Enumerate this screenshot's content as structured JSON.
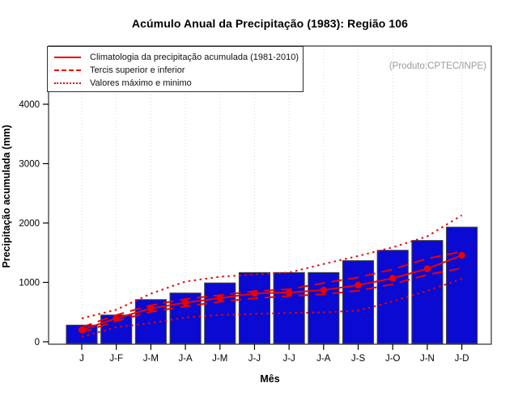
{
  "header": {
    "title": "Acúmulo Anual da Precipitação (1983): Região 106"
  },
  "annotation": {
    "produto": "(Produto:CPTEC/INPE)"
  },
  "legend": {
    "items": [
      {
        "label": "Climatologia da precipitação acumulada (1981-2010)",
        "style": "solid"
      },
      {
        "label": "Tercis superior e inferior",
        "style": "dashed"
      },
      {
        "label": "Valores máximo e minimo",
        "style": "dotted"
      }
    ]
  },
  "chart_data": {
    "type": "bar",
    "title": "Acúmulo Anual da Precipitação (1983): Região 106",
    "xlabel": "Mês",
    "ylabel": "Precipitação acumulada (mm)",
    "categories": [
      "J",
      "J-F",
      "J-M",
      "J-A",
      "J-M",
      "J-J",
      "J-J",
      "J-A",
      "J-S",
      "J-O",
      "J-N",
      "J-D"
    ],
    "ylim": [
      0,
      4000
    ],
    "yticks": [
      0,
      1000,
      2000,
      3000,
      4000
    ],
    "grid": "vertical-dotted",
    "legend_position": "top-left",
    "bar_color": "#0a0ad2",
    "line_color": "#ee0000",
    "series": [
      {
        "name": "Precipitação acumulada 1983",
        "type": "bar",
        "values": [
          280,
          450,
          710,
          820,
          990,
          1165,
          1165,
          1165,
          1365,
          1540,
          1705,
          1930
        ]
      },
      {
        "name": "Climatologia da precipitação acumulada (1981-2010)",
        "type": "line",
        "style": "solid",
        "marker": "circle",
        "values": [
          200,
          395,
          560,
          660,
          735,
          815,
          830,
          870,
          955,
          1070,
          1230,
          1455
        ]
      },
      {
        "name": "Tercil superior",
        "type": "line",
        "style": "dashed",
        "values": [
          245,
          450,
          615,
          720,
          785,
          850,
          885,
          990,
          1085,
          1220,
          1400,
          1520
        ]
      },
      {
        "name": "Tercil inferior",
        "type": "line",
        "style": "dashed",
        "values": [
          155,
          350,
          505,
          595,
          675,
          735,
          770,
          800,
          860,
          970,
          1130,
          1240
        ]
      },
      {
        "name": "Valor máximo",
        "type": "line",
        "style": "dotted",
        "values": [
          395,
          540,
          810,
          1015,
          1095,
          1135,
          1165,
          1310,
          1445,
          1590,
          1775,
          2130
        ]
      },
      {
        "name": "Valor minimo",
        "type": "line",
        "style": "dotted",
        "values": [
          85,
          245,
          315,
          410,
          450,
          470,
          485,
          495,
          525,
          680,
          860,
          1060
        ]
      }
    ]
  }
}
